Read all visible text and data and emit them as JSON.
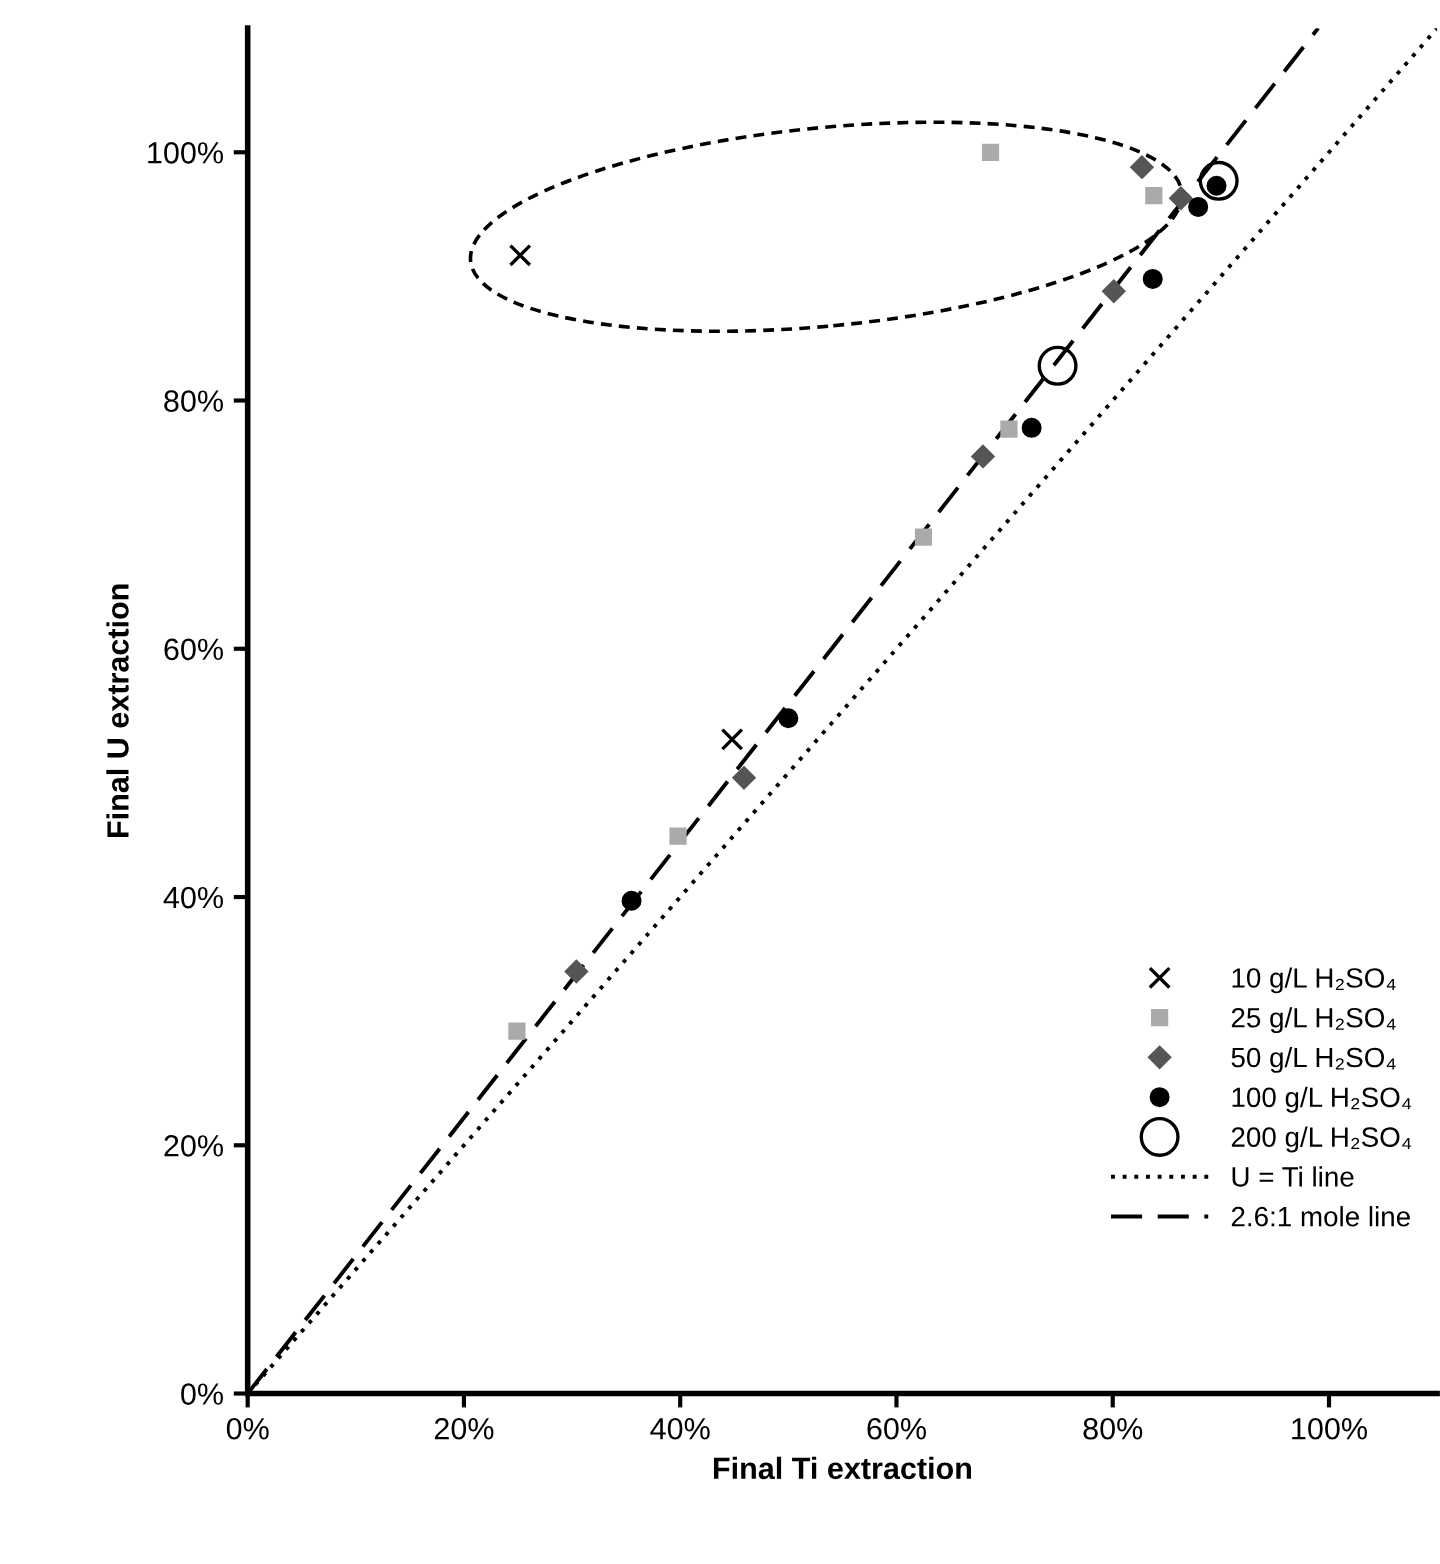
{
  "chart_data": {
    "type": "scatter",
    "xlabel": "Final Ti extraction",
    "ylabel": "Final U extraction",
    "xlim": [
      0,
      110
    ],
    "ylim": [
      0,
      110
    ],
    "xticks": [
      {
        "value": 0,
        "label": "0%"
      },
      {
        "value": 20,
        "label": "20%"
      },
      {
        "value": 40,
        "label": "40%"
      },
      {
        "value": 60,
        "label": "60%"
      },
      {
        "value": 80,
        "label": "80%"
      },
      {
        "value": 100,
        "label": "100%"
      }
    ],
    "yticks": [
      {
        "value": 0,
        "label": "0%"
      },
      {
        "value": 20,
        "label": "20%"
      },
      {
        "value": 40,
        "label": "40%"
      },
      {
        "value": 60,
        "label": "60%"
      },
      {
        "value": 80,
        "label": "80%"
      },
      {
        "value": 100,
        "label": "100%"
      }
    ],
    "grid": false,
    "legend": "bottom right",
    "series": [
      {
        "name": "10 g/L H₂SO₄",
        "marker": "cross",
        "color": "#000000",
        "x": [
          25.2,
          44.8
        ],
        "values": [
          91.7,
          52.7
        ]
      },
      {
        "name": "25 g/L H₂SO₄",
        "marker": "square",
        "color": "#aaaaaa",
        "x": [
          68.7,
          83.8,
          70.4,
          62.5,
          39.8,
          24.9
        ],
        "values": [
          100,
          96.5,
          77.7,
          69,
          44.9,
          29.2
        ]
      },
      {
        "name": "50 g/L H₂SO₄",
        "marker": "diamond",
        "color": "#555555",
        "x": [
          82.7,
          86.3,
          80.1,
          68,
          45.9,
          30.4
        ],
        "values": [
          98.8,
          96.3,
          88.8,
          75.5,
          49.6,
          34
        ]
      },
      {
        "name": "100 g/L H₂SO₄",
        "marker": "circle",
        "color": "#000000",
        "x": [
          89.6,
          87.9,
          83.7,
          72.5,
          50,
          35.5
        ],
        "values": [
          97.3,
          95.6,
          89.8,
          77.8,
          54.4,
          39.7
        ]
      },
      {
        "name": "200 g/L H₂SO₄",
        "marker": "circle",
        "color": "#000000",
        "x": [
          89.8,
          74.9
        ],
        "values": [
          97.7,
          82.8
        ]
      },
      {
        "name": "U = Ti line",
        "type": "line",
        "marker": "none",
        "line_style": "dotted",
        "color": "#000000",
        "x": [
          0,
          110
        ],
        "values": [
          0,
          110
        ]
      },
      {
        "name": "2.6:1 mole line",
        "type": "line",
        "marker": "none",
        "line_style": "dashed",
        "color": "#000000",
        "x": [
          0,
          99
        ],
        "values": [
          0,
          110
        ]
      }
    ]
  }
}
